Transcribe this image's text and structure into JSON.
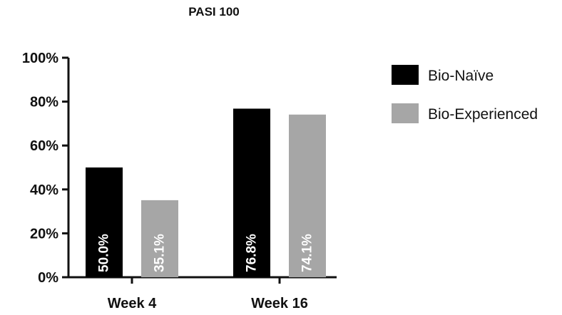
{
  "chart_data": {
    "type": "bar",
    "title": "PASI 100",
    "categories": [
      "Week 4",
      "Week 16"
    ],
    "series": [
      {
        "name": "Bio-Naïve",
        "values": [
          50.0,
          76.8
        ],
        "labels": [
          "50.0%",
          "76.8%"
        ],
        "color": "#000000"
      },
      {
        "name": "Bio-Experienced",
        "values": [
          35.1,
          74.1
        ],
        "labels": [
          "35.1%",
          "74.1%"
        ],
        "color": "#a6a6a6"
      }
    ],
    "ylim": [
      0,
      100
    ],
    "yticks": [
      0,
      20,
      40,
      60,
      80,
      100
    ],
    "ytick_labels": [
      "0%",
      "20%",
      "40%",
      "60%",
      "80%",
      "100%"
    ],
    "xlabel": "",
    "ylabel": "",
    "grid": false,
    "legend": "right"
  }
}
